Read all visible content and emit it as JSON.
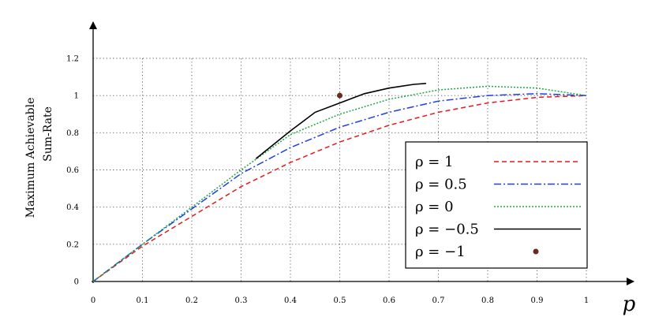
{
  "chart_data": {
    "type": "line",
    "xlabel": "p",
    "ylabel_lines": [
      "Maximum Achievable",
      "Sum-Rate"
    ],
    "xlim": [
      0,
      1
    ],
    "ylim": [
      0,
      1.2
    ],
    "x_ticks": [
      "0",
      "0.1",
      "0.2",
      "0.3",
      "0.4",
      "0.5",
      "0.6",
      "0.7",
      "0.8",
      "0.9",
      "1"
    ],
    "y_ticks": [
      "0",
      "0.2",
      "0.4",
      "0.6",
      "0.8",
      "1",
      "1.2"
    ],
    "grid": true,
    "legend_position": "bottom-right",
    "series": [
      {
        "name": "ρ = 1",
        "color": "#e41a1c",
        "style": "dashed",
        "x": [
          0,
          0.1,
          0.2,
          0.3,
          0.4,
          0.5,
          0.6,
          0.7,
          0.8,
          0.9,
          1.0
        ],
        "y": [
          0,
          0.19,
          0.35,
          0.51,
          0.64,
          0.75,
          0.84,
          0.91,
          0.96,
          0.99,
          1.0
        ]
      },
      {
        "name": "ρ = 0.5",
        "color": "#1f3fe0",
        "style": "dashdot",
        "x": [
          0,
          0.1,
          0.2,
          0.3,
          0.4,
          0.5,
          0.6,
          0.7,
          0.8,
          0.9,
          1.0
        ],
        "y": [
          0,
          0.2,
          0.39,
          0.58,
          0.72,
          0.83,
          0.91,
          0.97,
          1.0,
          1.01,
          1.0
        ]
      },
      {
        "name": "ρ = 0",
        "color": "#1ca84a",
        "style": "dotted",
        "x": [
          0,
          0.1,
          0.2,
          0.3,
          0.4,
          0.5,
          0.6,
          0.7,
          0.8,
          0.9,
          1.0
        ],
        "y": [
          0,
          0.2,
          0.4,
          0.6,
          0.79,
          0.9,
          0.98,
          1.03,
          1.05,
          1.04,
          1.0
        ]
      },
      {
        "name": "ρ = −0.5",
        "color": "#000000",
        "style": "solid",
        "x": [
          0.33,
          0.4,
          0.45,
          0.5,
          0.55,
          0.6,
          0.65,
          0.675
        ],
        "y": [
          0.66,
          0.81,
          0.91,
          0.96,
          1.01,
          1.04,
          1.06,
          1.065
        ]
      },
      {
        "name": "ρ = −1",
        "color": "#6b2a1f",
        "style": "point",
        "x": [
          0.5
        ],
        "y": [
          1.0
        ]
      }
    ]
  }
}
